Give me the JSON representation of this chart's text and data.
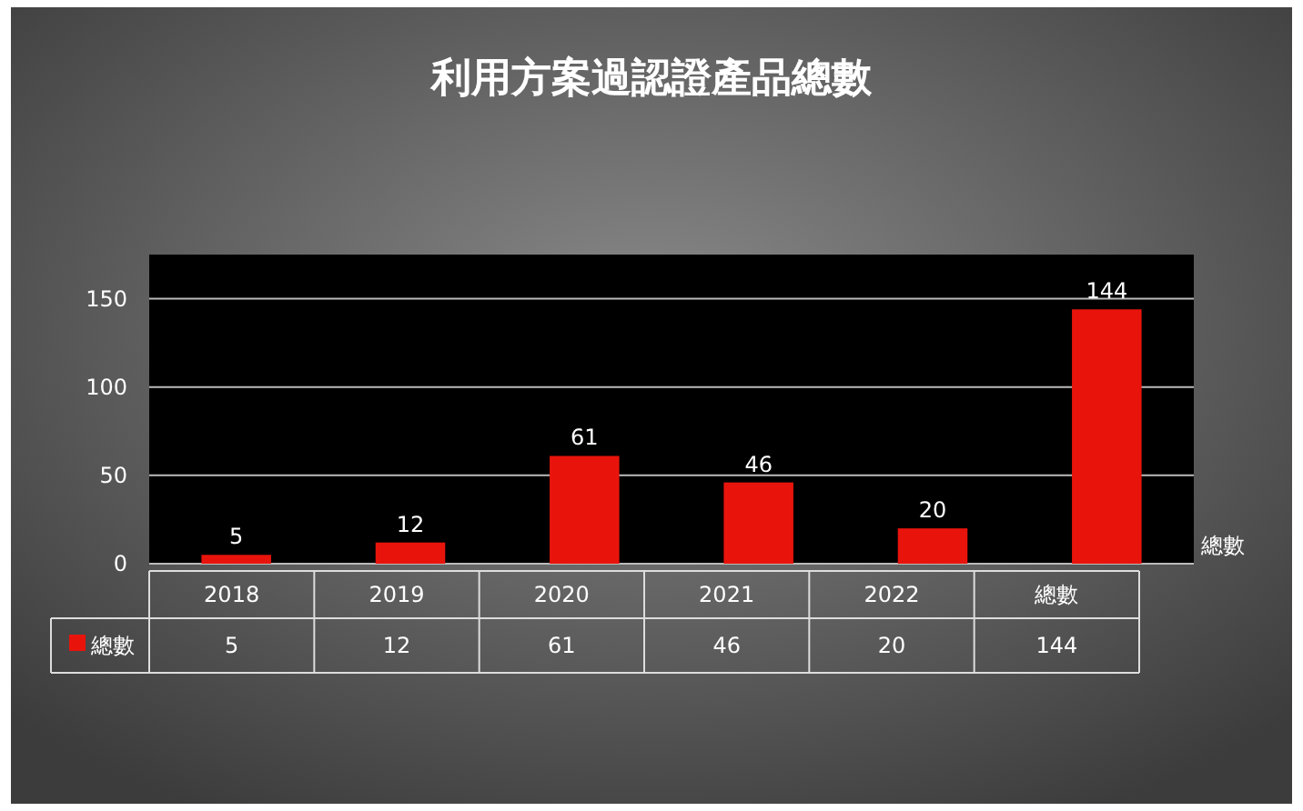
{
  "chart_data": {
    "type": "bar",
    "title": "利用方案過認證產品總數",
    "categories": [
      "2018",
      "2019",
      "2020",
      "2021",
      "2022",
      "總數"
    ],
    "series": [
      {
        "name": "總數",
        "color": "#e8140c",
        "values": [
          5,
          12,
          61,
          46,
          20,
          144
        ],
        "value_labels": [
          "5",
          "12",
          "61",
          "46",
          "20",
          "144"
        ]
      }
    ],
    "ylim": [
      0,
      175
    ],
    "yticks": [
      0,
      50,
      100,
      150
    ],
    "grid": "y",
    "legend": "bottom",
    "annotations": [
      "5",
      "12",
      "61",
      "46",
      "20",
      "144"
    ]
  }
}
